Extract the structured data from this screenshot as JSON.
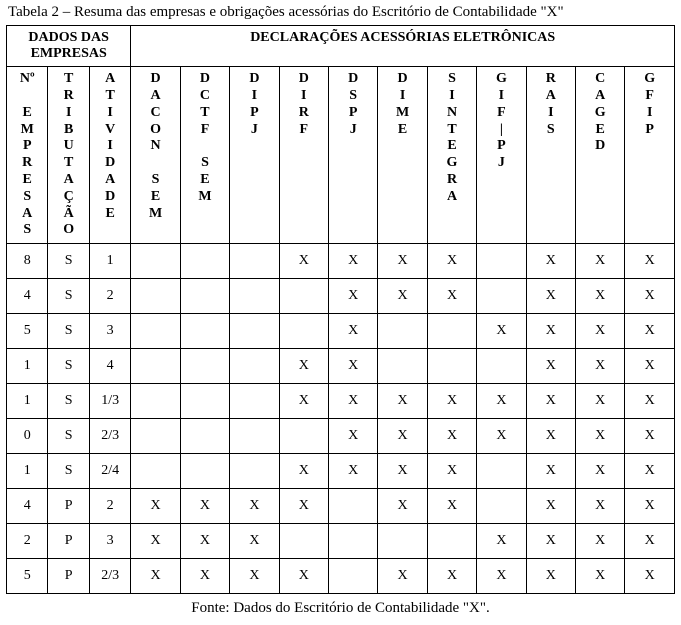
{
  "caption_top": "Tabela 2 – Resuma das empresas e obrigações acessórias do Escritório de Contabilidade \"X\"",
  "caption_bottom": "Fonte: Dados do Escritório de Contabilidade \"X\".",
  "group_headers": {
    "dados": "DADOS DAS EMPRESAS",
    "declaracoes": "DECLARAÇÕES ACESSÓRIAS ELETRÔNICAS"
  },
  "columns": {
    "c0": "Nº\n\nE\nM\nP\nR\nE\nS\nA\nS",
    "c1": "T\nR\nI\nB\nU\nT\nA\nÇ\nÃ\nO",
    "c2": "A\nT\nI\nV\nI\nD\nA\nD\nE",
    "c3": "D\nA\nC\nO\nN\n\nS\nE\nM",
    "c4": "D\nC\nT\nF\n\nS\nE\nM",
    "c5": "D\nI\nP\nJ",
    "c6": "D\nI\nR\nF",
    "c7": "D\nS\nP\nJ",
    "c8": "D\nI\nM\nE",
    "c9": "S\nI\nN\nT\nE\nG\nR\nA",
    "c10": "G\nI\nF\n|\nP\nJ",
    "c11": "R\nA\nI\nS",
    "c12": "C\nA\nG\nE\nD",
    "c13": "G\nF\nI\nP"
  },
  "rows": [
    {
      "n": "8",
      "t": "S",
      "a": "1",
      "d": [
        "",
        "",
        "",
        "X",
        "X",
        "X",
        "X",
        "",
        "X",
        "X",
        "X"
      ]
    },
    {
      "n": "4",
      "t": "S",
      "a": "2",
      "d": [
        "",
        "",
        "",
        "",
        "X",
        "X",
        "X",
        "",
        "X",
        "X",
        "X"
      ]
    },
    {
      "n": "5",
      "t": "S",
      "a": "3",
      "d": [
        "",
        "",
        "",
        "",
        "X",
        "",
        "",
        "X",
        "X",
        "X",
        "X"
      ]
    },
    {
      "n": "1",
      "t": "S",
      "a": "4",
      "d": [
        "",
        "",
        "",
        "X",
        "X",
        "",
        "",
        "",
        "X",
        "X",
        "X"
      ]
    },
    {
      "n": "1",
      "t": "S",
      "a": "1/3",
      "d": [
        "",
        "",
        "",
        "X",
        "X",
        "X",
        "X",
        "X",
        "X",
        "X",
        "X"
      ]
    },
    {
      "n": "0",
      "t": "S",
      "a": "2/3",
      "d": [
        "",
        "",
        "",
        "",
        "X",
        "X",
        "X",
        "X",
        "X",
        "X",
        "X"
      ]
    },
    {
      "n": "1",
      "t": "S",
      "a": "2/4",
      "d": [
        "",
        "",
        "",
        "X",
        "X",
        "X",
        "X",
        "",
        "X",
        "X",
        "X"
      ]
    },
    {
      "n": "4",
      "t": "P",
      "a": "2",
      "d": [
        "X",
        "X",
        "X",
        "X",
        "",
        "X",
        "X",
        "",
        "X",
        "X",
        "X"
      ]
    },
    {
      "n": "2",
      "t": "P",
      "a": "3",
      "d": [
        "X",
        "X",
        "X",
        "",
        "",
        "",
        "",
        "X",
        "X",
        "X",
        "X"
      ]
    },
    {
      "n": "5",
      "t": "P",
      "a": "2/3",
      "d": [
        "X",
        "X",
        "X",
        "X",
        "",
        "X",
        "X",
        "X",
        "X",
        "X",
        "X"
      ]
    }
  ]
}
